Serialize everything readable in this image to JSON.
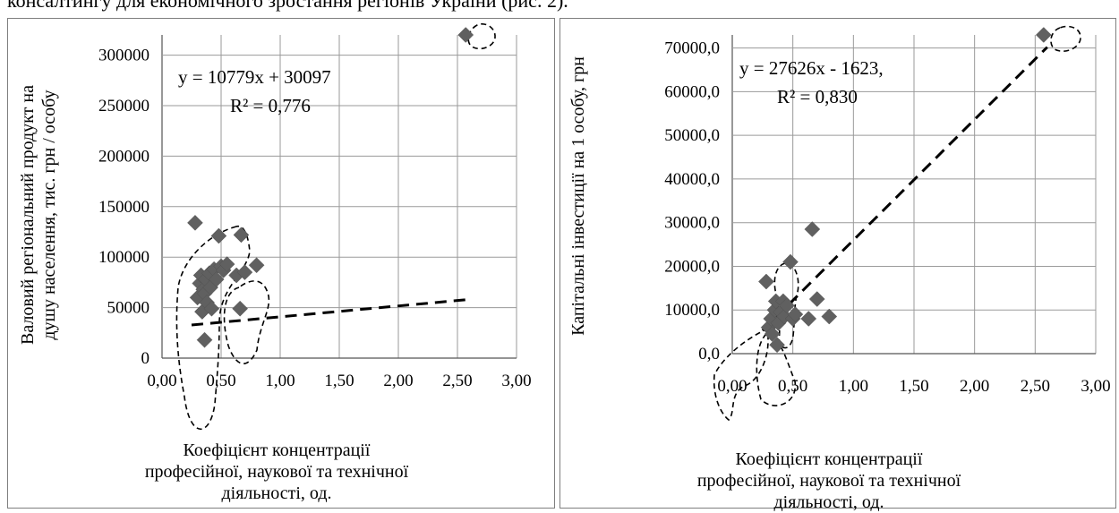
{
  "page": {
    "caption_fragment": "консалтингу для економічного зростання регіонів України (рис. 2)."
  },
  "chart_data": [
    {
      "type": "scatter",
      "title": "",
      "equation": "y = 10779x + 30097",
      "r2": "R² = 0,776",
      "ylabel_lines": [
        "Валовий регіональний продукт на",
        "душу населення, тис. грн / особу"
      ],
      "xlabel_lines": [
        "Коефіцієнт концентрації",
        "професійної, наукової та технічної",
        "діяльності, од."
      ],
      "xlim": [
        0,
        3
      ],
      "ylim": [
        0,
        320000
      ],
      "xticks": [
        0,
        0.5,
        1,
        1.5,
        2,
        2.5,
        3
      ],
      "yticks": [
        0,
        50000,
        100000,
        150000,
        200000,
        250000,
        300000
      ],
      "xtick_labels": [
        "0,00",
        "0,50",
        "1,00",
        "1,50",
        "2,00",
        "2,50",
        "3,00"
      ],
      "ytick_labels": [
        "0",
        "50000",
        "100000",
        "150000",
        "200000",
        "250000",
        "300000"
      ],
      "grid": true,
      "trendline": {
        "slope": 10779,
        "intercept": 30097,
        "x_range": [
          0.25,
          2.6
        ]
      },
      "series": [
        {
          "x": [
            0.28,
            0.3,
            0.32,
            0.33,
            0.34,
            0.35,
            0.36,
            0.36,
            0.37,
            0.38,
            0.4,
            0.41,
            0.42,
            0.44,
            0.46,
            0.48,
            0.5,
            0.52,
            0.55,
            0.63,
            0.66,
            0.67,
            0.7,
            0.8,
            2.57
          ],
          "y": [
            134000,
            60000,
            74000,
            82000,
            46000,
            68000,
            18000,
            64000,
            78000,
            55000,
            84000,
            70000,
            49000,
            88000,
            78000,
            121000,
            91000,
            87000,
            93000,
            82000,
            49000,
            122000,
            85000,
            92000,
            320000
          ]
        }
      ]
    },
    {
      "type": "scatter",
      "title": "",
      "equation": "y = 27626x - 1623,",
      "r2": "R² = 0,830",
      "ylabel_lines": [
        "Капітальні інвестиції на 1 особу, грн"
      ],
      "xlabel_lines": [
        "Коефіцієнт концентрації",
        "професійної, наукової та технічної",
        "діяльності, од."
      ],
      "xlim": [
        0,
        3
      ],
      "ylim": [
        0,
        73000
      ],
      "xticks": [
        0,
        0.5,
        1,
        1.5,
        2,
        2.5,
        3
      ],
      "yticks": [
        0,
        10000,
        20000,
        30000,
        40000,
        50000,
        60000,
        70000
      ],
      "xtick_labels": [
        "0,00",
        "0,50",
        "1,00",
        "1,50",
        "2,00",
        "2,50",
        "3,00"
      ],
      "ytick_labels": [
        "0,0",
        "10000,0",
        "20000,0",
        "30000,0",
        "40000,0",
        "50000,0",
        "60000,0",
        "70000,0"
      ],
      "grid": true,
      "trendline": {
        "slope": 27626,
        "intercept": -1623,
        "x_range": [
          0.25,
          2.6
        ]
      },
      "series": [
        {
          "x": [
            0.28,
            0.3,
            0.32,
            0.33,
            0.35,
            0.36,
            0.37,
            0.38,
            0.4,
            0.42,
            0.43,
            0.45,
            0.48,
            0.5,
            0.52,
            0.63,
            0.66,
            0.7,
            0.8,
            2.57
          ],
          "y": [
            16500,
            6000,
            8000,
            4500,
            10000,
            12000,
            2000,
            7000,
            9500,
            12000,
            8500,
            11000,
            21000,
            8000,
            9000,
            8000,
            28500,
            12500,
            8500,
            73000
          ]
        }
      ]
    }
  ]
}
